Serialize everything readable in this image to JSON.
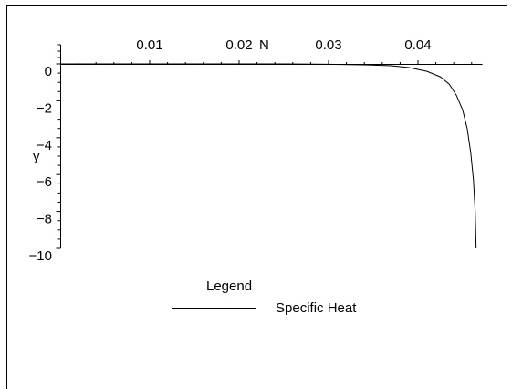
{
  "chart_data": {
    "type": "line",
    "title": "",
    "xlabel": "N",
    "ylabel": "y",
    "xlim": [
      0,
      0.047
    ],
    "ylim": [
      -10,
      0.3
    ],
    "x_ticks": [
      {
        "value": 0.01,
        "label": "0.01"
      },
      {
        "value": 0.02,
        "label": "0.02"
      },
      {
        "value": 0.03,
        "label": "0.03"
      },
      {
        "value": 0.04,
        "label": "0.04"
      }
    ],
    "y_ticks": [
      {
        "value": 0,
        "label": "0"
      },
      {
        "value": -2,
        "label": "−2"
      },
      {
        "value": -4,
        "label": "−4"
      },
      {
        "value": -6,
        "label": "−6"
      },
      {
        "value": -8,
        "label": "−8"
      },
      {
        "value": -10,
        "label": "−10"
      }
    ],
    "grid": false,
    "legend": {
      "title": "Legend",
      "position": "bottom"
    },
    "series": [
      {
        "name": "Specific Heat",
        "color": "#000000",
        "points": [
          {
            "x": 0.0,
            "y": 0
          },
          {
            "x": 0.025,
            "y": 0
          },
          {
            "x": 0.03,
            "y": -0.02
          },
          {
            "x": 0.034,
            "y": -0.05
          },
          {
            "x": 0.037,
            "y": -0.1
          },
          {
            "x": 0.039,
            "y": -0.2
          },
          {
            "x": 0.041,
            "y": -0.4
          },
          {
            "x": 0.0425,
            "y": -0.7
          },
          {
            "x": 0.0435,
            "y": -1.1
          },
          {
            "x": 0.0443,
            "y": -1.7
          },
          {
            "x": 0.045,
            "y": -2.5
          },
          {
            "x": 0.0455,
            "y": -3.5
          },
          {
            "x": 0.0459,
            "y": -4.8
          },
          {
            "x": 0.0462,
            "y": -6.3
          },
          {
            "x": 0.0464,
            "y": -8.0
          },
          {
            "x": 0.0465,
            "y": -10.0
          }
        ]
      }
    ]
  }
}
